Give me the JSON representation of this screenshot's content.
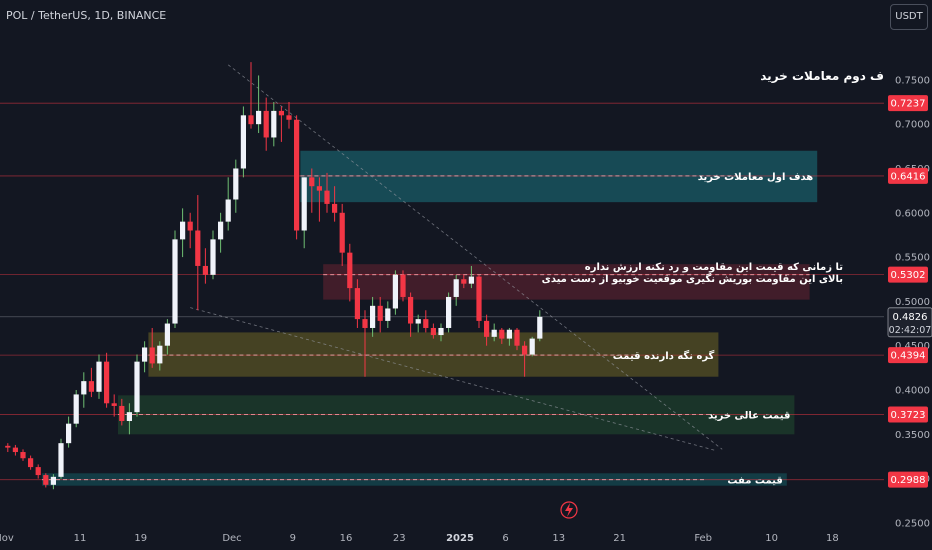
{
  "header": {
    "symbol": "POL / TetherUS, 1D, BINANCE",
    "currency": "USDT"
  },
  "colors": {
    "background": "#131722",
    "bull": "#f0f3fa",
    "bear": "#f23645",
    "marker_red": "#f23645",
    "zone_teal": "#19535e",
    "zone_red": "#4a1f2b",
    "zone_olive": "#4f4a23",
    "zone_green": "#1c3a2a",
    "zone_blue": "#14434b"
  },
  "chart_data": {
    "type": "candlestick",
    "y_ticks": [
      "0.7500",
      "0.7000",
      "0.6500",
      "0.6000",
      "0.5500",
      "0.5000",
      "0.4500",
      "0.4000",
      "0.3500",
      "0.3000",
      "0.2500"
    ],
    "ylim": [
      0.242,
      0.795
    ],
    "x_ticks": [
      {
        "label": "Nov",
        "i": 0
      },
      {
        "label": "11",
        "i": 10
      },
      {
        "label": "19",
        "i": 18
      },
      {
        "label": "Dec",
        "i": 30
      },
      {
        "label": "9",
        "i": 38
      },
      {
        "label": "16",
        "i": 45
      },
      {
        "label": "23",
        "i": 52
      },
      {
        "label": "2025",
        "i": 60
      },
      {
        "label": "6",
        "i": 66
      },
      {
        "label": "13",
        "i": 73
      },
      {
        "label": "21",
        "i": 81
      },
      {
        "label": "Feb",
        "i": 92
      },
      {
        "label": "10",
        "i": 101
      },
      {
        "label": "18",
        "i": 109
      }
    ],
    "candles": [
      [
        0.337,
        0.34,
        0.33,
        0.335
      ],
      [
        0.335,
        0.338,
        0.326,
        0.33
      ],
      [
        0.33,
        0.333,
        0.32,
        0.323
      ],
      [
        0.323,
        0.326,
        0.31,
        0.313
      ],
      [
        0.313,
        0.316,
        0.3,
        0.304
      ],
      [
        0.304,
        0.306,
        0.29,
        0.293
      ],
      [
        0.293,
        0.305,
        0.288,
        0.302
      ],
      [
        0.302,
        0.345,
        0.3,
        0.34
      ],
      [
        0.34,
        0.37,
        0.335,
        0.362
      ],
      [
        0.362,
        0.4,
        0.358,
        0.395
      ],
      [
        0.395,
        0.42,
        0.38,
        0.41
      ],
      [
        0.41,
        0.425,
        0.392,
        0.398
      ],
      [
        0.398,
        0.44,
        0.39,
        0.432
      ],
      [
        0.432,
        0.442,
        0.38,
        0.385
      ],
      [
        0.385,
        0.395,
        0.37,
        0.382
      ],
      [
        0.382,
        0.39,
        0.36,
        0.365
      ],
      [
        0.365,
        0.385,
        0.35,
        0.375
      ],
      [
        0.375,
        0.44,
        0.37,
        0.432
      ],
      [
        0.432,
        0.455,
        0.42,
        0.448
      ],
      [
        0.448,
        0.47,
        0.425,
        0.43
      ],
      [
        0.43,
        0.455,
        0.422,
        0.45
      ],
      [
        0.45,
        0.48,
        0.44,
        0.475
      ],
      [
        0.475,
        0.58,
        0.47,
        0.57
      ],
      [
        0.57,
        0.605,
        0.55,
        0.59
      ],
      [
        0.59,
        0.6,
        0.56,
        0.58
      ],
      [
        0.58,
        0.62,
        0.49,
        0.54
      ],
      [
        0.54,
        0.56,
        0.52,
        0.53
      ],
      [
        0.53,
        0.58,
        0.525,
        0.57
      ],
      [
        0.57,
        0.6,
        0.555,
        0.59
      ],
      [
        0.59,
        0.64,
        0.58,
        0.615
      ],
      [
        0.615,
        0.66,
        0.6,
        0.65
      ],
      [
        0.65,
        0.72,
        0.64,
        0.71
      ],
      [
        0.71,
        0.77,
        0.695,
        0.7
      ],
      [
        0.7,
        0.755,
        0.69,
        0.715
      ],
      [
        0.715,
        0.73,
        0.67,
        0.685
      ],
      [
        0.685,
        0.725,
        0.675,
        0.715
      ],
      [
        0.715,
        0.72,
        0.68,
        0.71
      ],
      [
        0.71,
        0.725,
        0.695,
        0.705
      ],
      [
        0.705,
        0.71,
        0.57,
        0.58
      ],
      [
        0.58,
        0.64,
        0.56,
        0.64
      ],
      [
        0.64,
        0.65,
        0.6,
        0.63
      ],
      [
        0.63,
        0.64,
        0.59,
        0.625
      ],
      [
        0.625,
        0.645,
        0.6,
        0.61
      ],
      [
        0.61,
        0.63,
        0.59,
        0.6
      ],
      [
        0.6,
        0.61,
        0.54,
        0.555
      ],
      [
        0.555,
        0.565,
        0.5,
        0.515
      ],
      [
        0.515,
        0.525,
        0.47,
        0.48
      ],
      [
        0.48,
        0.49,
        0.415,
        0.47
      ],
      [
        0.47,
        0.505,
        0.46,
        0.495
      ],
      [
        0.495,
        0.505,
        0.465,
        0.478
      ],
      [
        0.478,
        0.5,
        0.47,
        0.492
      ],
      [
        0.492,
        0.535,
        0.485,
        0.53
      ],
      [
        0.53,
        0.535,
        0.5,
        0.505
      ],
      [
        0.505,
        0.51,
        0.46,
        0.475
      ],
      [
        0.475,
        0.485,
        0.465,
        0.48
      ],
      [
        0.48,
        0.49,
        0.465,
        0.47
      ],
      [
        0.47,
        0.475,
        0.458,
        0.462
      ],
      [
        0.462,
        0.475,
        0.455,
        0.47
      ],
      [
        0.47,
        0.51,
        0.465,
        0.505
      ],
      [
        0.505,
        0.53,
        0.495,
        0.525
      ],
      [
        0.525,
        0.53,
        0.515,
        0.52
      ],
      [
        0.52,
        0.54,
        0.515,
        0.528
      ],
      [
        0.528,
        0.53,
        0.47,
        0.478
      ],
      [
        0.478,
        0.485,
        0.45,
        0.46
      ],
      [
        0.46,
        0.475,
        0.455,
        0.468
      ],
      [
        0.468,
        0.47,
        0.452,
        0.458
      ],
      [
        0.458,
        0.47,
        0.45,
        0.468
      ],
      [
        0.468,
        0.47,
        0.445,
        0.45
      ],
      [
        0.45,
        0.455,
        0.415,
        0.44
      ],
      [
        0.44,
        0.46,
        0.438,
        0.458
      ],
      [
        0.458,
        0.49,
        0.455,
        0.4826
      ]
    ],
    "horizontal_levels": [
      {
        "price": 0.7237,
        "label": "0.7237",
        "color": "#f23645"
      },
      {
        "price": 0.6416,
        "label": "0.6416",
        "color": "#f23645"
      },
      {
        "price": 0.5302,
        "label": "0.5302",
        "color": "#f23645"
      },
      {
        "price": 0.4394,
        "label": "0.4394",
        "color": "#f23645"
      },
      {
        "price": 0.3723,
        "label": "0.3723",
        "color": "#f23645"
      },
      {
        "price": 0.2988,
        "label": "0.2988",
        "color": "#f23645"
      }
    ],
    "last_price": {
      "label": "0.4826",
      "countdown": "02:42:07",
      "price": 0.4826
    },
    "zones": [
      {
        "name": "target-1-zone",
        "from_i": 39,
        "to_i": 107,
        "top": 0.67,
        "bottom": 0.612,
        "mid": 0.6416,
        "color_key": "zone_teal",
        "label": "هدف اول معاملات خرید"
      },
      {
        "name": "resistance-zone",
        "from_i": 42,
        "to_i": 106,
        "top": 0.542,
        "bottom": 0.502,
        "mid": 0.5302,
        "color_key": "zone_red",
        "label": ""
      },
      {
        "name": "support-zone",
        "from_i": 19,
        "to_i": 94,
        "top": 0.465,
        "bottom": 0.415,
        "mid": 0.4394,
        "color_key": "zone_olive",
        "label": "گره نگه دارنده قیمت"
      },
      {
        "name": "buy-zone",
        "from_i": 15,
        "to_i": 104,
        "top": 0.394,
        "bottom": 0.35,
        "mid": 0.3723,
        "color_key": "zone_green",
        "label": "قیمت عالی خرید"
      },
      {
        "name": "bargain-zone",
        "from_i": 5,
        "to_i": 103,
        "top": 0.306,
        "bottom": 0.292,
        "mid": 0.2988,
        "color_key": "zone_blue",
        "label": "قیمت مفت"
      }
    ],
    "annotations": {
      "target2": "ف دوم معاملات خرید",
      "resistance_line1": "تا زمانی که قیمت این مقاومت و رد نکنه ارزش نداره",
      "resistance_line2": "بالای این مقاومت بوریش نگیری موقعیت خوبیو از دست میدی"
    },
    "trendlines": [
      {
        "from": [
          29.5,
          0.767
        ],
        "to": [
          94.5,
          0.333
        ]
      },
      {
        "from": [
          24.5,
          0.493
        ],
        "to": [
          93.5,
          0.332
        ]
      }
    ]
  }
}
